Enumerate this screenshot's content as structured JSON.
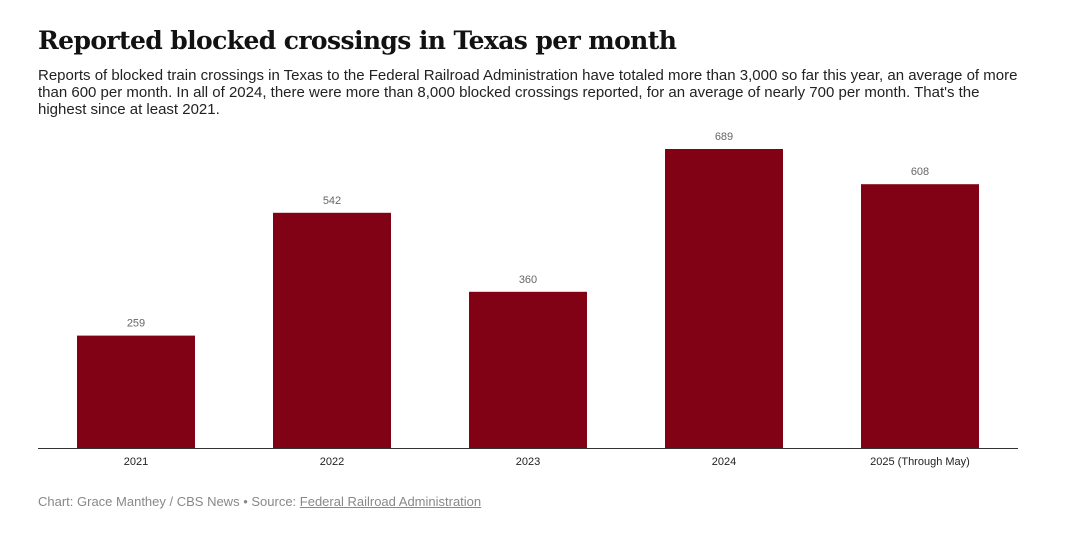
{
  "chart_data": {
    "type": "bar",
    "title": "Reported blocked crossings in Texas per month",
    "subtitle": "Reports of blocked train crossings in Texas to the Federal Railroad Administration have totaled more than 3,000 so far this year, an average of more than 600 per month. In all of 2024, there were more than 8,000 blocked crossings reported, for an average of nearly 700 per month. That's the highest since at least 2021.",
    "categories": [
      "2021",
      "2022",
      "2023",
      "2024",
      "2025 (Through May)"
    ],
    "values": [
      259,
      542,
      360,
      689,
      608
    ],
    "xlabel": "",
    "ylabel": "",
    "ylim": [
      0,
      689
    ],
    "grid": false,
    "bar_color": "#820215"
  },
  "footer": {
    "credit": "Chart: Grace Manthey / CBS News",
    "separator": " • ",
    "source_prefix": "Source: ",
    "source_link": "Federal Railroad Administration"
  }
}
